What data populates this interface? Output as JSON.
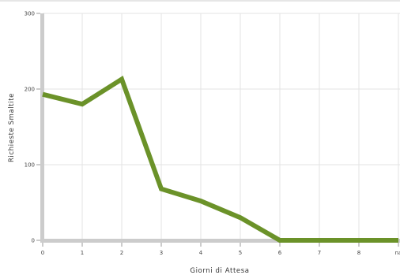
{
  "chart_data": {
    "type": "line",
    "xlabel": "Giorni di Attesa",
    "ylabel": "Richieste Smaltite",
    "categories": [
      "0",
      "1",
      "2",
      "3",
      "4",
      "5",
      "6",
      "7",
      "8",
      "na"
    ],
    "values": [
      193,
      180,
      213,
      68,
      52,
      30,
      0,
      0,
      0,
      0
    ],
    "ylim": [
      0,
      300
    ],
    "yticks": [
      0,
      100,
      200,
      300
    ],
    "grid": true,
    "line_color": "#6b9229",
    "axis_color": "#cccccc"
  }
}
